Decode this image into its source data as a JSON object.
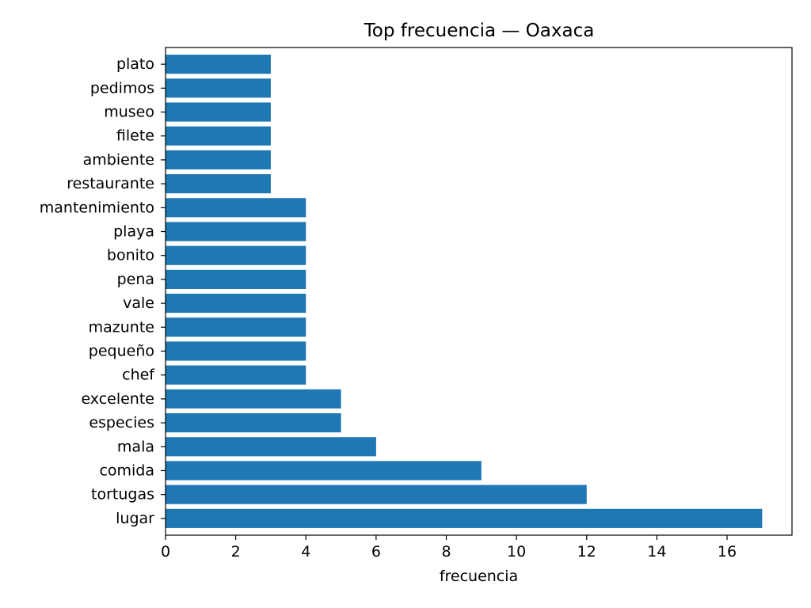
{
  "chart_data": {
    "type": "bar",
    "orientation": "horizontal",
    "title": "Top frecuencia — Oaxaca",
    "xlabel": "frecuencia",
    "ylabel": "",
    "categories": [
      "lugar",
      "tortugas",
      "comida",
      "mala",
      "especies",
      "excelente",
      "chef",
      "pequeño",
      "mazunte",
      "vale",
      "pena",
      "bonito",
      "playa",
      "mantenimiento",
      "restaurante",
      "ambiente",
      "filete",
      "museo",
      "pedimos",
      "plato"
    ],
    "values": [
      17,
      12,
      9,
      6,
      5,
      5,
      4,
      4,
      4,
      4,
      4,
      4,
      4,
      4,
      3,
      3,
      3,
      3,
      3,
      3
    ],
    "xlim": [
      0,
      17.85
    ],
    "xticks": [
      0,
      2,
      4,
      6,
      8,
      10,
      12,
      14,
      16
    ],
    "bar_color": "#1f77b4",
    "grid": false,
    "legend": false
  }
}
